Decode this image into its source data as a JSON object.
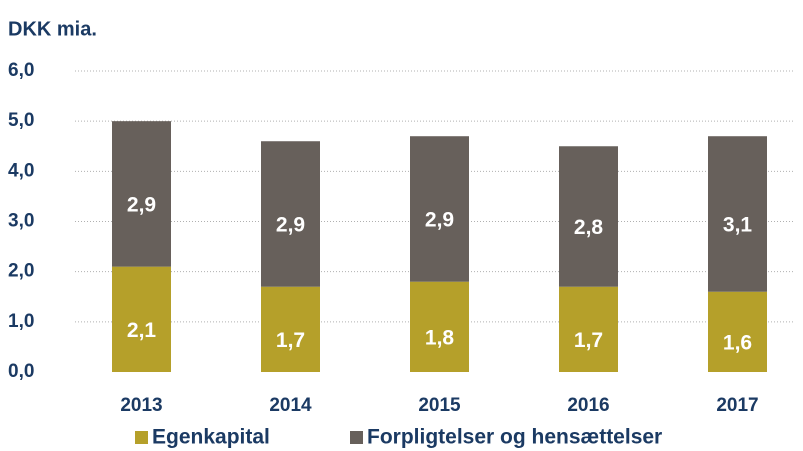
{
  "chart_data": {
    "type": "stacked_bar",
    "title": "DKK mia.",
    "categories": [
      "2013",
      "2014",
      "2015",
      "2016",
      "2017"
    ],
    "series": [
      {
        "name": "Egenkapital",
        "color": "#b5a02a",
        "values": [
          2.1,
          1.7,
          1.8,
          1.7,
          1.6
        ],
        "value_labels": [
          "2,1",
          "1,7",
          "1,8",
          "1,7",
          "1,6"
        ]
      },
      {
        "name": "Forpligtelser og hensættelser",
        "color": "#67605b",
        "values": [
          2.9,
          2.9,
          2.9,
          2.8,
          3.1
        ],
        "value_labels": [
          "2,9",
          "2,9",
          "2,9",
          "2,8",
          "3,1"
        ]
      }
    ],
    "ylim": [
      0,
      6
    ],
    "yticks": [
      {
        "value": 0,
        "label": "0,0"
      },
      {
        "value": 1,
        "label": "1,0"
      },
      {
        "value": 2,
        "label": "2,0"
      },
      {
        "value": 3,
        "label": "3,0"
      },
      {
        "value": 4,
        "label": "4,0"
      },
      {
        "value": 5,
        "label": "5,0"
      },
      {
        "value": 6,
        "label": "6,0"
      }
    ],
    "grid": true
  }
}
